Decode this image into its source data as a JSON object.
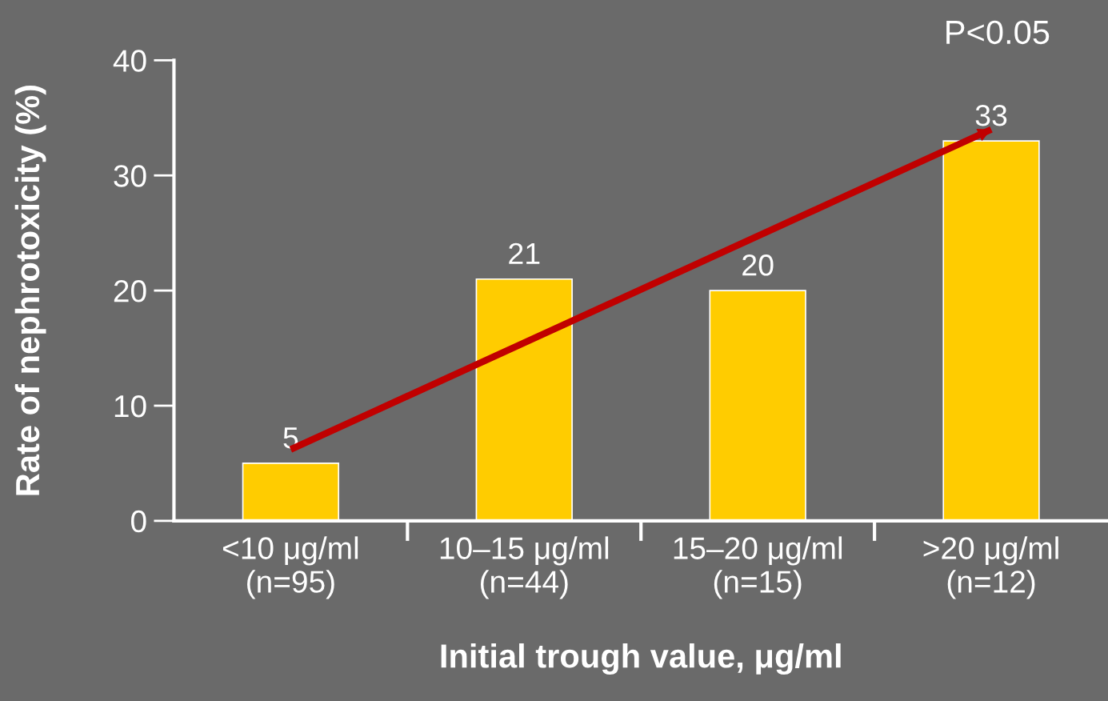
{
  "chart_data": {
    "type": "bar",
    "categories": [
      "<10 μg/ml\n(n=95)",
      "10–15 μg/ml\n(n=44)",
      "15–20 μg/ml\n(n=15)",
      ">20 μg/ml\n(n=12)"
    ],
    "series": [
      {
        "color": "#ffcc00",
        "values": [
          5,
          21,
          20,
          33
        ],
        "value_labels": [
          "5",
          "21",
          "20",
          "33"
        ]
      },
      {
        "type": "line",
        "color": "#c00000",
        "x": [
          "<10 μg/ml\n(n=95)",
          ">20 μg/ml\n(n=12)"
        ],
        "values": [
          6.2,
          34
        ]
      }
    ],
    "xlabel": "Initial trough value, μg/ml",
    "ylabel": "Rate of nephrotoxicity (%)",
    "ylim": [
      0,
      40
    ],
    "yticks": [
      0,
      10,
      20,
      30,
      40
    ],
    "annotations": [
      "P<0.05"
    ],
    "grid": false
  }
}
